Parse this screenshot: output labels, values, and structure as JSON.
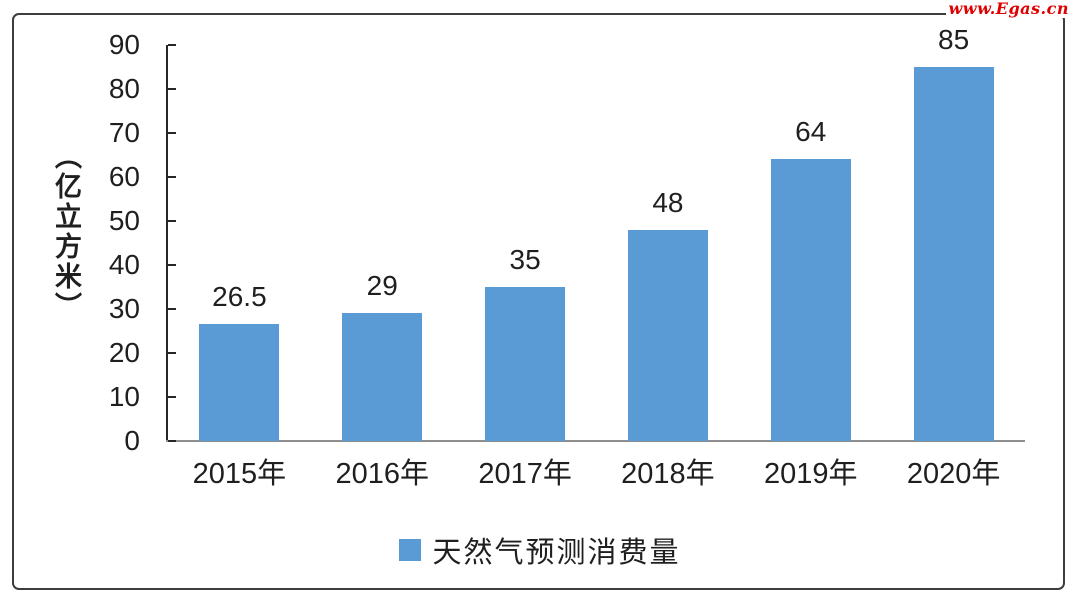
{
  "watermark": {
    "text": "www.Egas.cn",
    "color": "#e00000"
  },
  "frame": {
    "border_color": "#3d3d3d"
  },
  "chart_data": {
    "type": "bar",
    "title": "",
    "categories": [
      "2015年",
      "2016年",
      "2017年",
      "2018年",
      "2019年",
      "2020年"
    ],
    "values": [
      26.5,
      29,
      35,
      48,
      64,
      85
    ],
    "data_labels": [
      "26.5",
      "29",
      "35",
      "48",
      "64",
      "85"
    ],
    "legend_label": "天然气预测消费量",
    "legend_position": "bottom-center",
    "xlabel": "",
    "ylabel": "（亿立方米）",
    "ylim": [
      0,
      90
    ],
    "yticks": [
      0,
      10,
      20,
      30,
      40,
      50,
      60,
      70,
      80,
      90
    ],
    "grid": false,
    "bar_color": "#5B9BD5",
    "axis_color": "#262626",
    "x_axis_line_color": "#8f8f8f",
    "text_color": "#1f1f1f"
  }
}
